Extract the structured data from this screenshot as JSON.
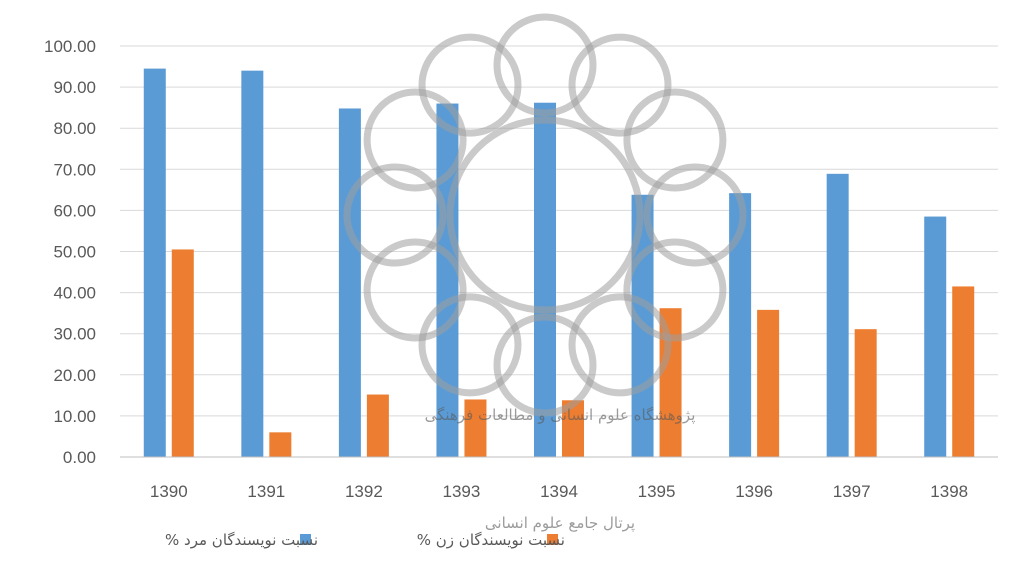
{
  "chart_data": {
    "type": "bar",
    "categories": [
      "1390",
      "1391",
      "1392",
      "1393",
      "1394",
      "1395",
      "1396",
      "1397",
      "1398"
    ],
    "series": [
      {
        "name": "نسبت نویسندگان مرد %",
        "color": "#5b9bd5",
        "values": [
          94.5,
          94.0,
          84.8,
          86.0,
          86.2,
          63.8,
          64.2,
          68.9,
          58.5
        ]
      },
      {
        "name": "نسبت نویسندگان زن %",
        "color": "#ed7d31",
        "values": [
          50.5,
          6.0,
          15.2,
          14.0,
          13.8,
          36.2,
          35.8,
          31.1,
          41.5
        ]
      }
    ],
    "y_ticks": [
      "0.00",
      "10.00",
      "20.00",
      "30.00",
      "40.00",
      "50.00",
      "60.00",
      "70.00",
      "80.00",
      "90.00",
      "100.00"
    ],
    "ylim": [
      0,
      100
    ],
    "grid": true,
    "legend_position": "bottom",
    "title": "",
    "xlabel": "",
    "ylabel": ""
  },
  "colors": {
    "grid": "#d9d9d9",
    "axis": "#bfbfbf",
    "text": "#595959",
    "watermark": "#9e9e9e"
  },
  "watermark": {
    "line1": "پژوهشگاه علوم انسانی و مطالعات فرهنگی",
    "line2": "پرتال جامع علوم انسانی"
  }
}
